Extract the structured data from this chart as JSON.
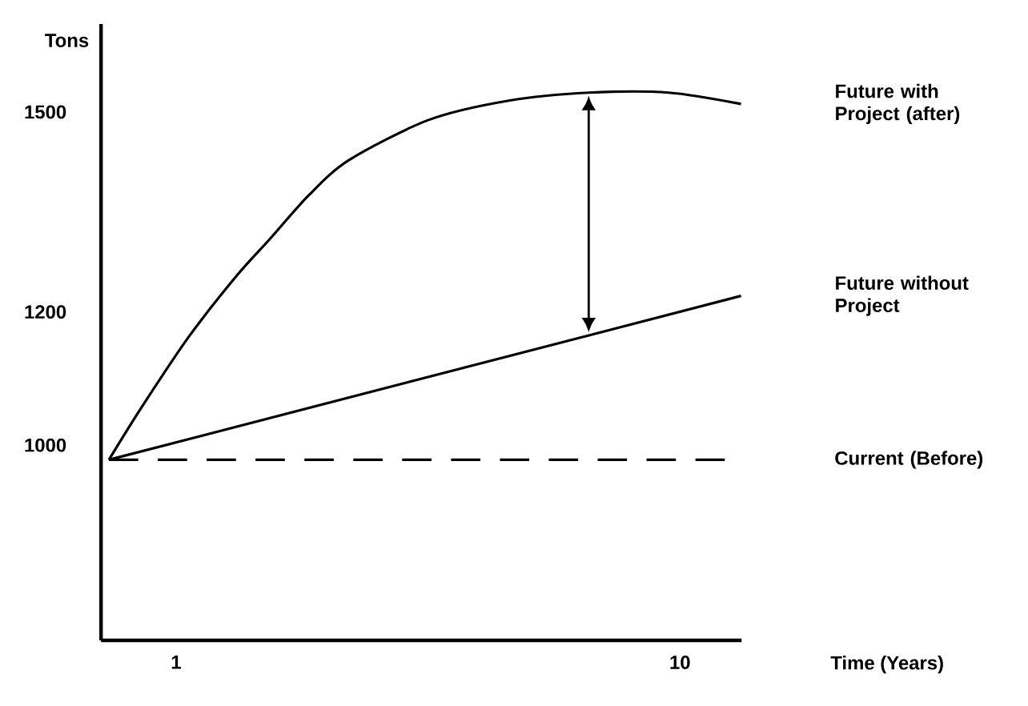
{
  "chart_data": {
    "type": "line",
    "xlabel": "Time (Years)",
    "ylabel": "Tons",
    "xlim": [
      -0.34,
      11.1
    ],
    "ylim": [
      707,
      1632
    ],
    "xticks": [
      1,
      10
    ],
    "yticks": [
      1000,
      1200,
      1500
    ],
    "grid": false,
    "marker": "none",
    "series": [
      {
        "name": "Future with Project (after)",
        "color": "#000000",
        "line_style": "solid",
        "x": [
          -0.2,
          0.37,
          1.23,
          2.09,
          2.66,
          3.37,
          4.09,
          5.51,
          6.94,
          8.37,
          9.8,
          11.09
        ],
        "values": [
          978,
          1055,
          1163,
          1255,
          1308,
          1375,
          1428,
          1488,
          1517,
          1529,
          1529,
          1512
        ]
      },
      {
        "name": "Future without Project",
        "color": "#000000",
        "line_style": "solid",
        "x": [
          -0.2,
          11.09
        ],
        "values": [
          978,
          1224
        ]
      },
      {
        "name": "Current (Before)",
        "color": "#000000",
        "line_style": "dashed",
        "x": [
          -0.2,
          10.8
        ],
        "values": [
          978,
          978
        ]
      }
    ]
  }
}
